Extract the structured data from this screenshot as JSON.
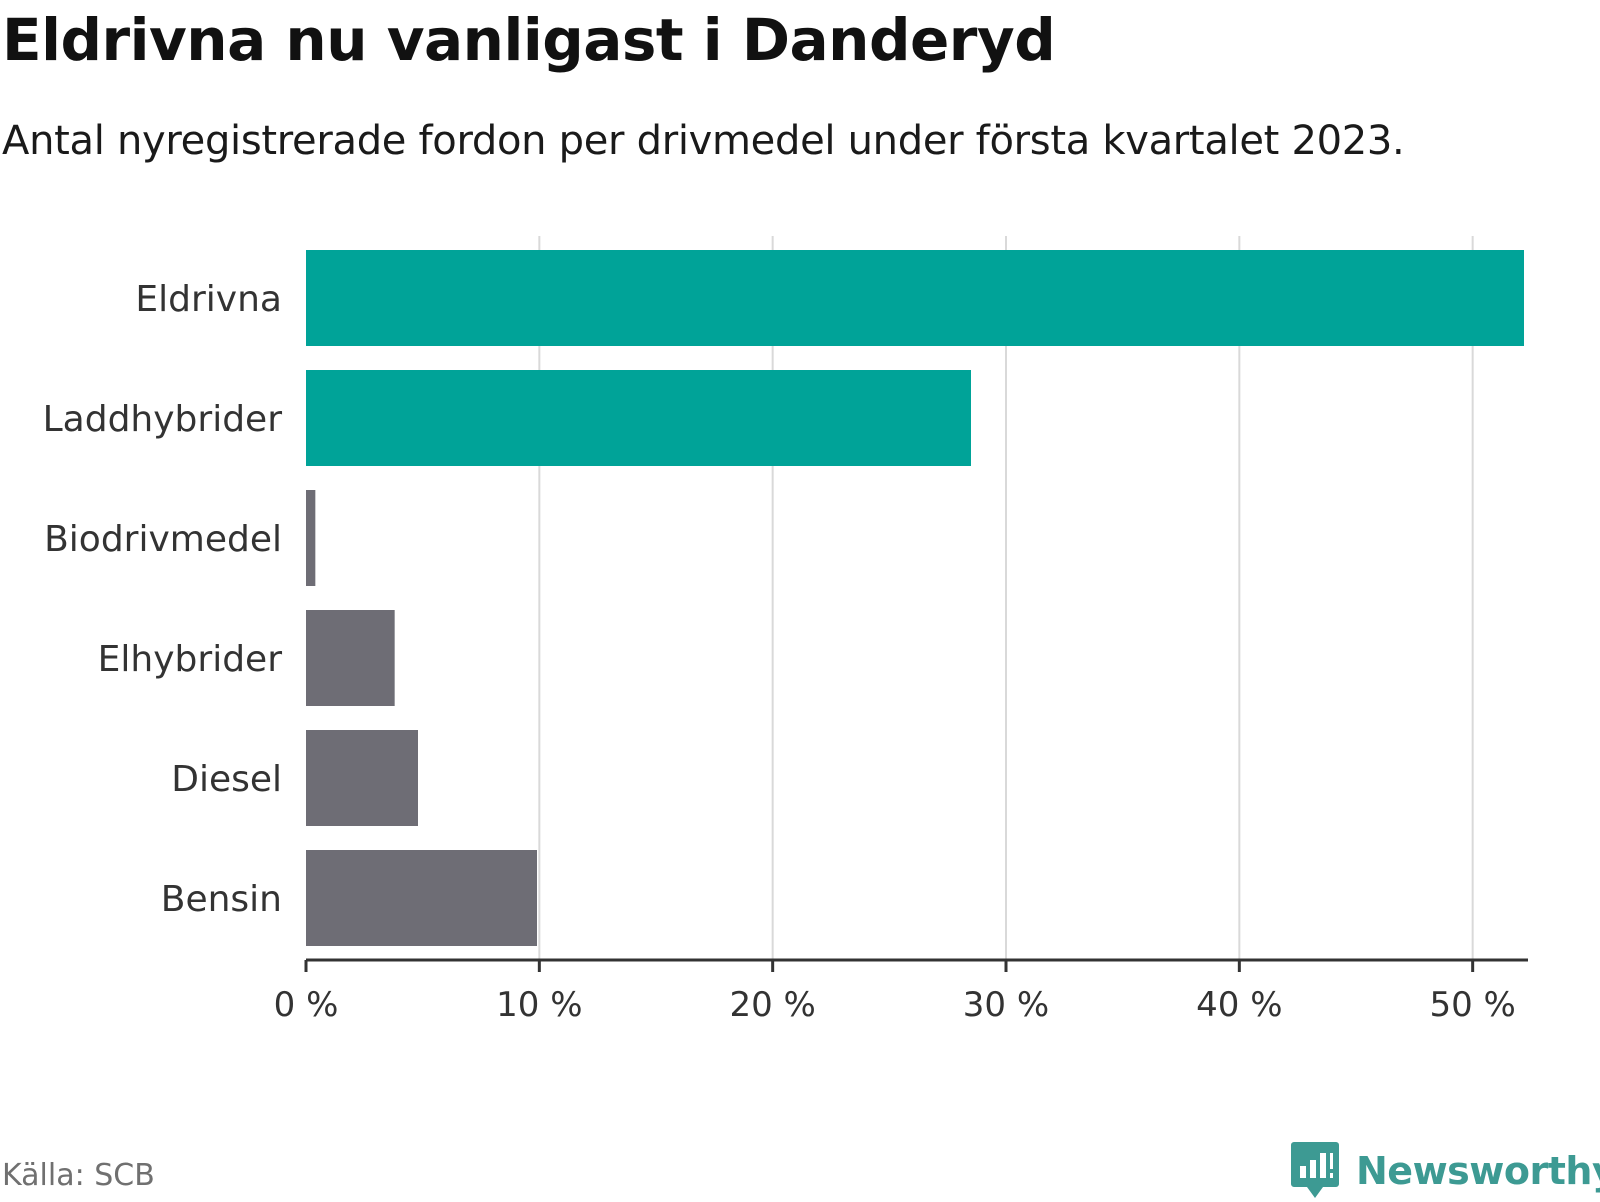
{
  "header": {
    "title": "Eldrivna nu vanligast i Danderyd",
    "subtitle": "Antal nyregistrerade fordon per drivmedel under första kvartalet 2023."
  },
  "footer": {
    "source": "Källa: SCB",
    "brand": "Newsworthy"
  },
  "colors": {
    "highlight": "#00a398",
    "neutral": "#6e6d75",
    "grid": "#d9d9d9",
    "axis": "#333333",
    "label": "#333333",
    "brand": "#3d9a93"
  },
  "chart_data": {
    "type": "bar",
    "orientation": "horizontal",
    "title": "Eldrivna nu vanligast i Danderyd",
    "subtitle": "Antal nyregistrerade fordon per drivmedel under första kvartalet 2023.",
    "xlabel": "",
    "ylabel": "",
    "unit": "%",
    "xlim": [
      0,
      52.2
    ],
    "ticks": [
      0,
      10,
      20,
      30,
      40,
      50
    ],
    "tick_labels": [
      "0 %",
      "10 %",
      "20 %",
      "30 %",
      "40 %",
      "50 %"
    ],
    "grid": true,
    "categories": [
      "Eldrivna",
      "Laddhybrider",
      "Biodrivmedel",
      "Elhybrider",
      "Diesel",
      "Bensin"
    ],
    "values": [
      52.2,
      28.5,
      0.4,
      3.8,
      4.8,
      9.9
    ],
    "highlighted": [
      true,
      true,
      false,
      false,
      false,
      false
    ]
  }
}
